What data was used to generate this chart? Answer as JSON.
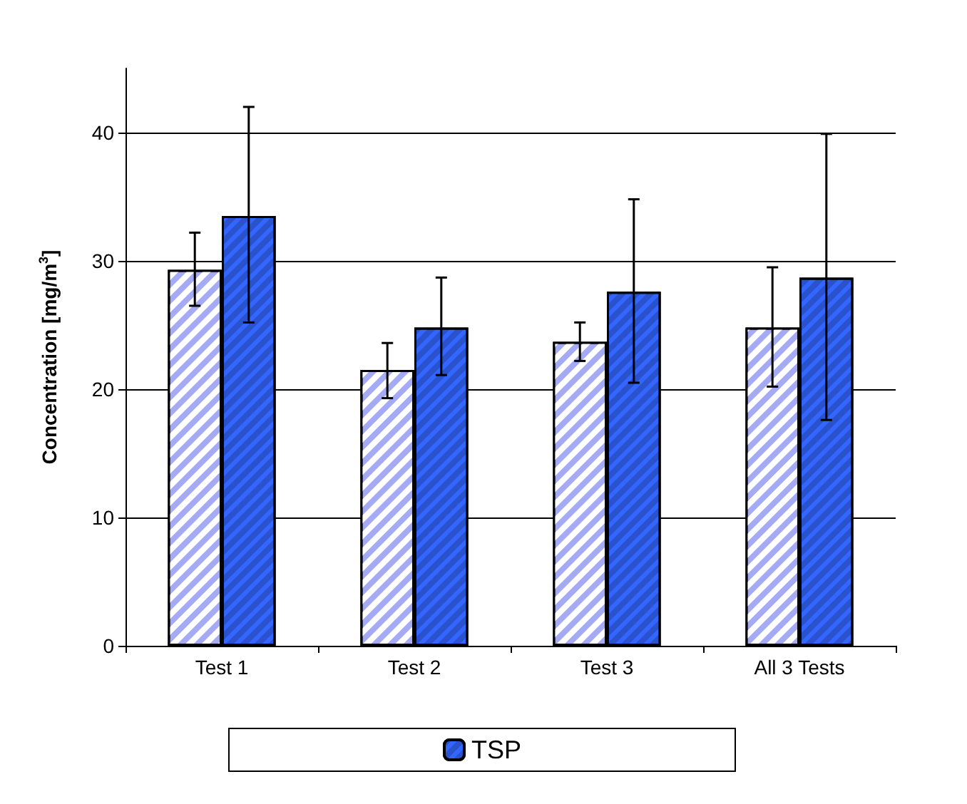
{
  "chart_data": {
    "type": "bar",
    "ylabel": "Concentration [mg/m$^{3}$]",
    "categories": [
      "Test 1",
      "Test 2",
      "Test 3",
      "All 3 Tests"
    ],
    "series": [
      {
        "color": "#a4aaf4",
        "values": [
          29.3,
          21.5,
          23.7,
          24.8
        ],
        "errors": [
          [
            26.5,
            32.2
          ],
          [
            19.3,
            23.6
          ],
          [
            22.2,
            25.2
          ],
          [
            20.2,
            29.5
          ]
        ]
      },
      {
        "name": "TSP",
        "color": "#3366ff",
        "values": [
          33.5,
          24.8,
          27.6,
          28.7
        ],
        "errors": [
          [
            25.2,
            42.0
          ],
          [
            21.1,
            28.7
          ],
          [
            20.5,
            34.8
          ],
          [
            17.6,
            39.9
          ]
        ]
      }
    ],
    "ylim": [
      0,
      45
    ],
    "yticks": [
      0,
      10,
      20,
      30,
      40
    ],
    "grid": "y",
    "legend": "bottom"
  }
}
